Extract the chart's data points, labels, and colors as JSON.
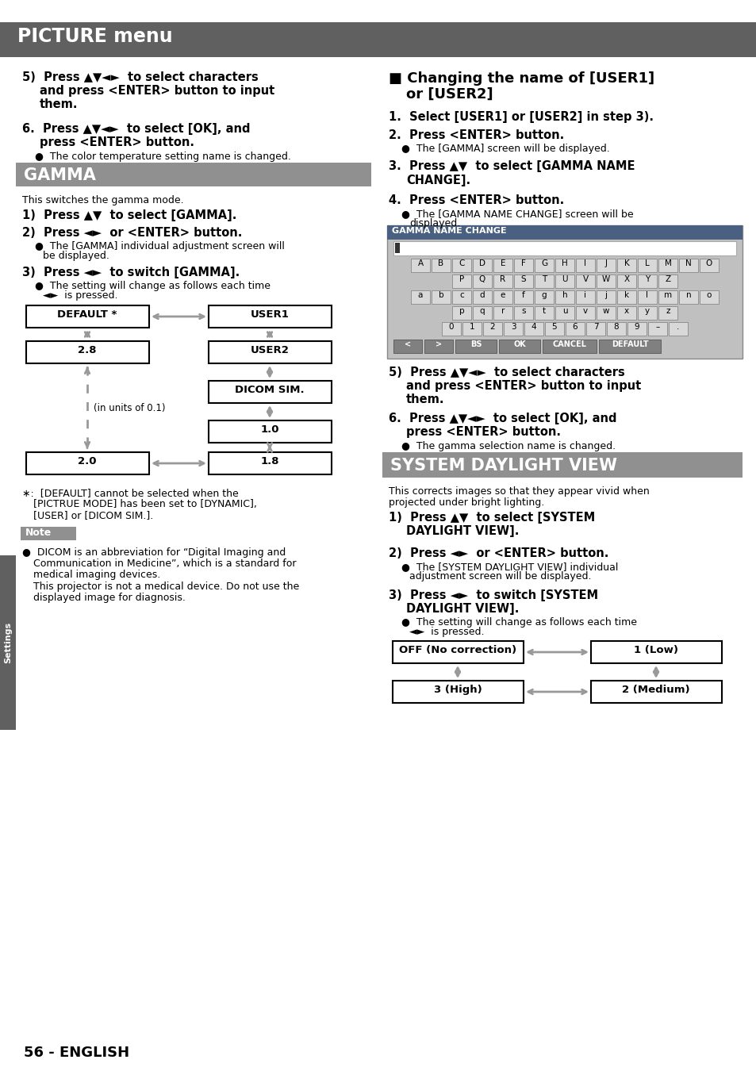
{
  "page_bg": "#ffffff",
  "header_bg": "#606060",
  "header_text": "PICTURE menu",
  "header_text_color": "#ffffff",
  "gamma_header_bg": "#909090",
  "gamma_header_text": "GAMMA",
  "system_header_bg": "#909090",
  "system_header_text": "SYSTEM DAYLIGHT VIEW",
  "footer_text": "56 - ENGLISH",
  "sidebar_bg": "#606060",
  "sidebar_text": "Settings",
  "note_bg": "#909090",
  "note_text_color": "#ffffff",
  "gnc_header_bg": "#4a6080",
  "gnc_key_bg": "#c0c0c0",
  "gnc_btn_bg": "#808080",
  "gnc_outer_bg": "#c0c0c0"
}
